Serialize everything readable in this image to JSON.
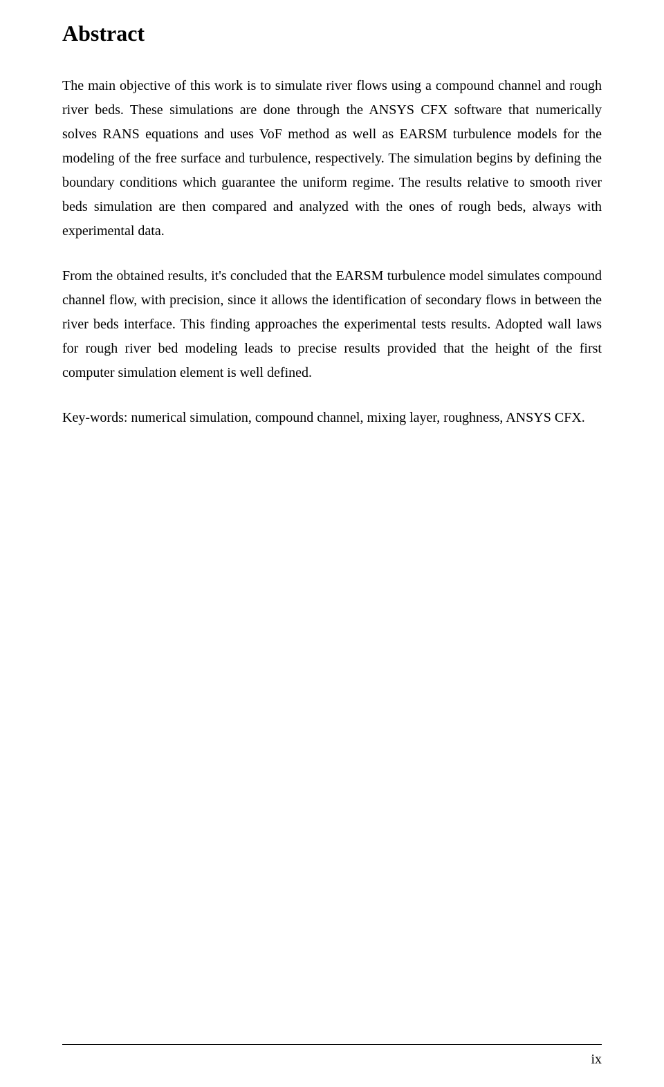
{
  "title": "Abstract",
  "paragraph1": "The main objective of this work is to simulate river flows using a compound channel and rough river beds. These simulations are done through the ANSYS CFX software that numerically solves RANS equations and uses VoF method as well as EARSM turbulence models for the modeling of the free surface and turbulence, respectively. The simulation begins by defining the boundary conditions which guarantee the uniform regime. The results relative to smooth river beds simulation are then compared and analyzed with the ones of rough beds, always with experimental data.",
  "paragraph2": "From the obtained results, it's concluded that the EARSM turbulence model simulates compound channel flow, with precision, since it allows the identification of secondary flows in between the river beds interface. This finding approaches the experimental tests results. Adopted wall laws for rough river bed modeling leads to precise results provided that the height of the first computer simulation element is well defined.",
  "keywords": "Key-words: numerical simulation, compound channel, mixing layer, roughness, ANSYS CFX.",
  "pageNumber": "ix"
}
